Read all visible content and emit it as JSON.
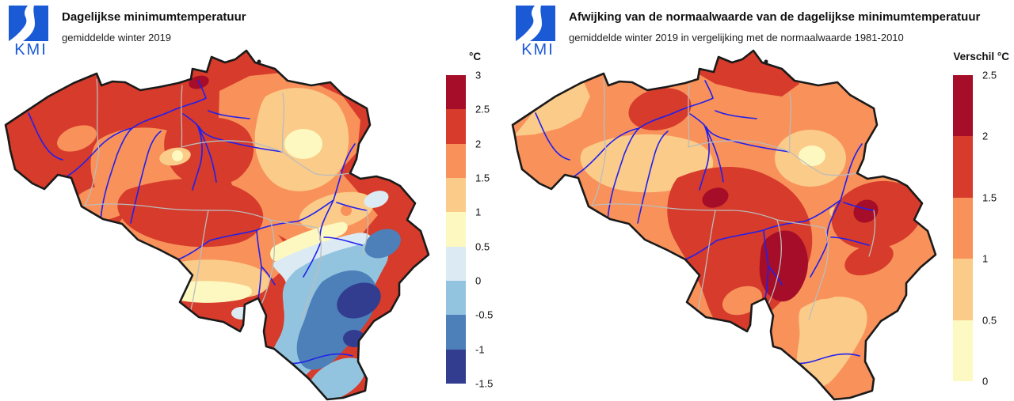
{
  "panels": {
    "left": {
      "logo_text": "KMI",
      "title": "Dagelijkse minimumtemperatuur",
      "subtitle": "gemiddelde winter 2019",
      "colorbar": {
        "unit_label": "°C",
        "tick_labels": [
          "3",
          "2.5",
          "2",
          "1.5",
          "1",
          "0.5",
          "0",
          "-0.5",
          "-1",
          "-1.5"
        ],
        "segment_colors": [
          "#a50d28",
          "#d63b2b",
          "#f8915a",
          "#fbcb89",
          "#fdf8c0",
          "#dcebf3",
          "#93c4df",
          "#4d80b9",
          "#323d90"
        ]
      }
    },
    "right": {
      "logo_text": "KMI",
      "title": "Afwijking van de normaalwaarde van de dagelijkse minimumtemperatuur",
      "subtitle": "gemiddelde winter 2019 in vergelijking met de normaalwaarde 1981-2010",
      "colorbar": {
        "unit_label": "Verschil °C",
        "tick_labels": [
          "2.5",
          "2",
          "1.5",
          "1",
          "0.5",
          "0"
        ],
        "segment_colors": [
          "#a50d28",
          "#d63b2b",
          "#f8915a",
          "#fbcb89",
          "#fdf9c2"
        ]
      }
    }
  },
  "map_style": {
    "river_color": "#2020ee",
    "province_border_color": "#bcbcbc",
    "country_border_color": "#1a1a1a",
    "logo_color": "#1a5ad5",
    "background_color": "#ffffff"
  }
}
